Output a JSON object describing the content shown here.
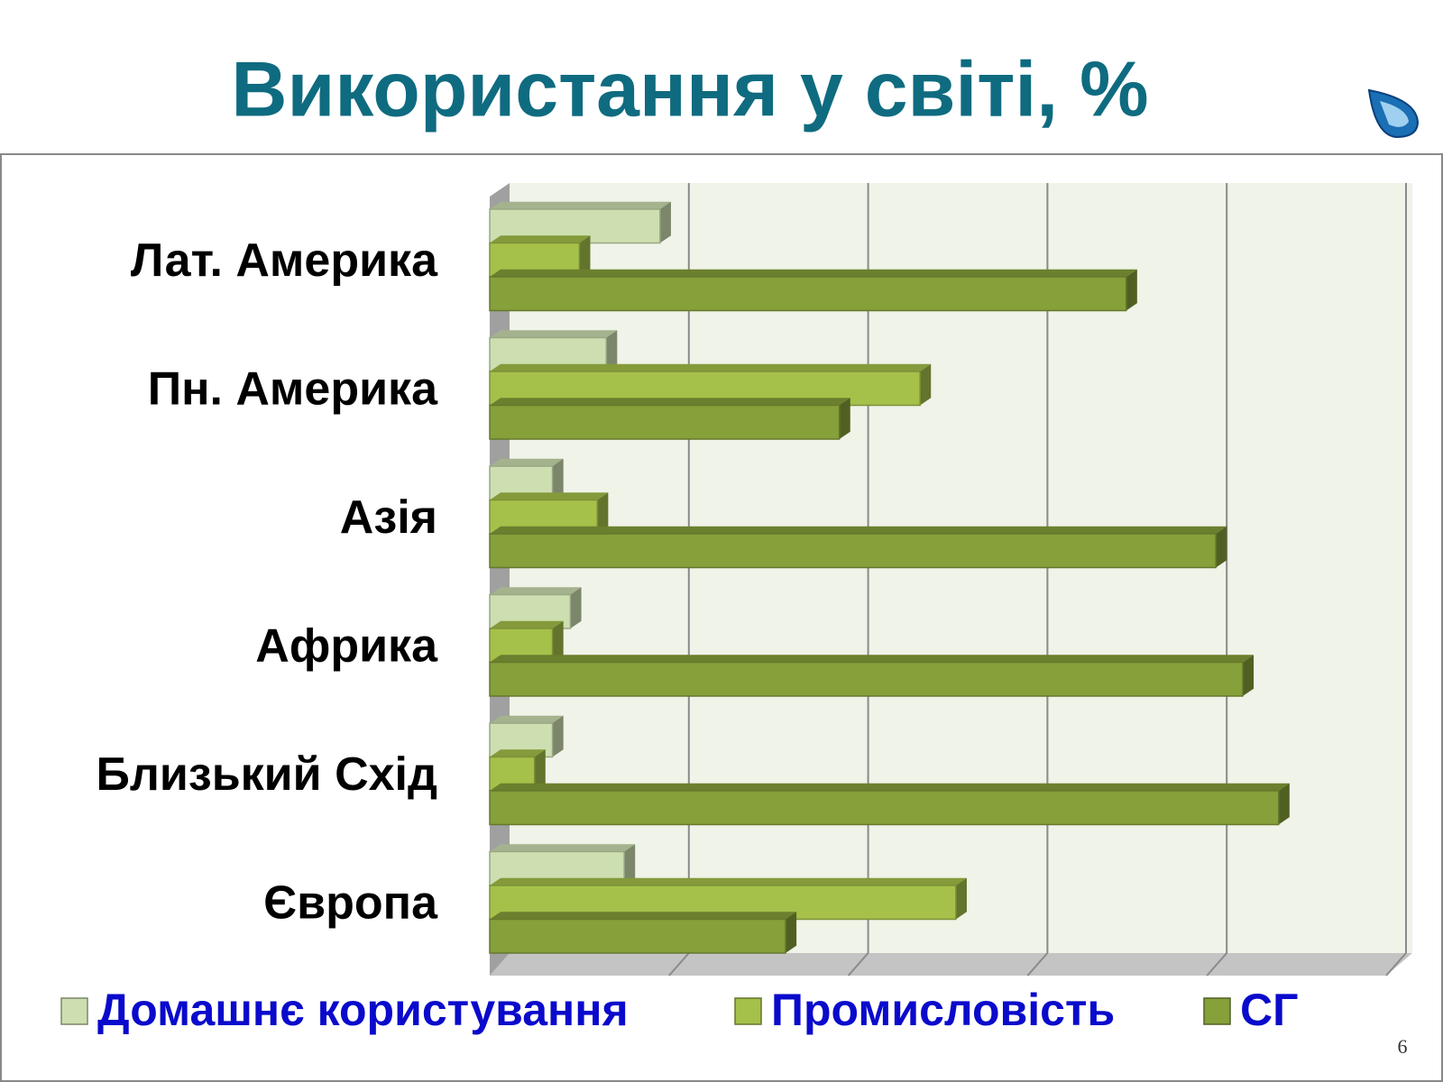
{
  "chart_data": {
    "type": "hbar3d",
    "title": "Використання у світі, %",
    "categories": [
      "Лат. Америка",
      "Пн. Америка",
      "Азія",
      "Африка",
      "Близький Схід",
      "Європа"
    ],
    "series": [
      {
        "name": "Домашнє користування",
        "color": "#cddfb0",
        "values": [
          19,
          13,
          7,
          9,
          7,
          15
        ]
      },
      {
        "name": "Промисловість",
        "color": "#a5c14a",
        "values": [
          10,
          48,
          12,
          7,
          5,
          52
        ]
      },
      {
        "name": "СГ",
        "color": "#86a03a",
        "values": [
          71,
          39,
          81,
          84,
          88,
          33
        ]
      }
    ],
    "xlim": [
      0,
      100
    ],
    "grid": true,
    "legend": "bottom",
    "page_number": "6"
  }
}
